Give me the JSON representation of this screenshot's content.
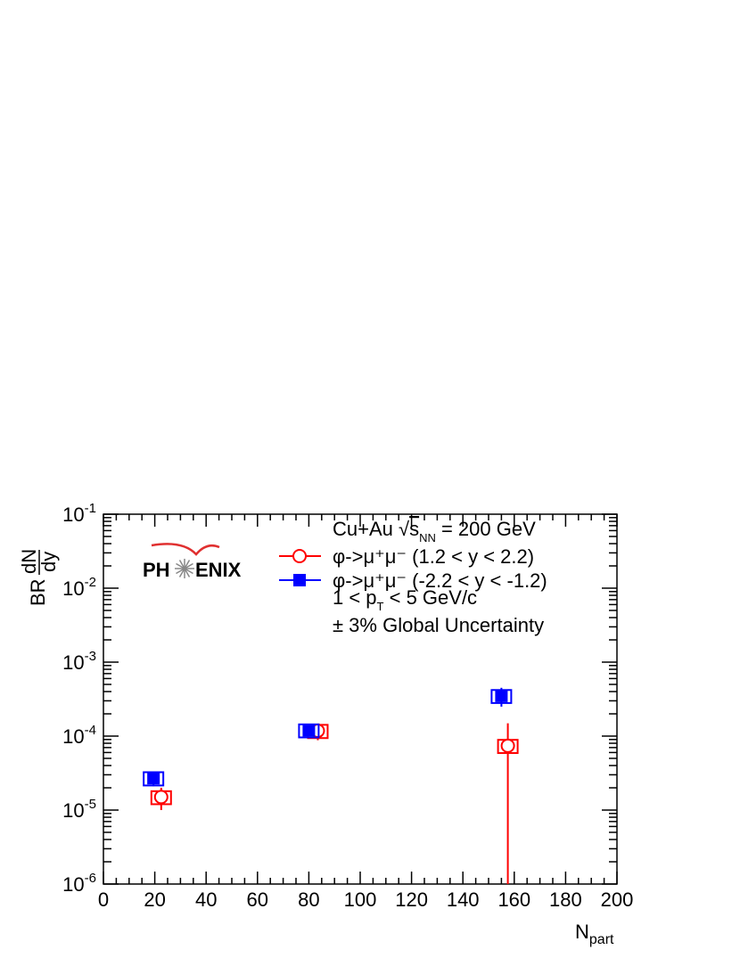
{
  "chart_data": {
    "type": "scatter",
    "log_y": true,
    "x_label": {
      "main": "N",
      "sub": "part"
    },
    "y_label": {
      "prefix": "BR",
      "numerator": "dN",
      "denominator": "dy"
    },
    "logo": {
      "left": "PH",
      "right": "ENIX"
    },
    "annotations": [
      {
        "parts": [
          {
            "text": "Cu+Au √"
          },
          {
            "text": "s"
          },
          {
            "text": "NN",
            "shift": "sub"
          },
          {
            "text": " = 200 GeV"
          }
        ]
      },
      {
        "parts": [
          {
            "text": "1 < p"
          },
          {
            "text": "T",
            "shift": "sub"
          },
          {
            "text": " < 5 GeV/c"
          }
        ]
      },
      {
        "parts": [
          {
            "text": "± 3% Global Uncertainty"
          }
        ]
      }
    ],
    "series": [
      {
        "name": "φ->μ⁺μ⁻ (1.2 < y < 2.2)",
        "color": "#ff0000",
        "marker": "open-circle",
        "x": [
          22.5,
          83.5,
          157.5
        ],
        "values": [
          1.5e-05,
          0.000118,
          7.4e-05
        ],
        "errors": [
          5e-06,
          3e-05,
          7.5e-05
        ],
        "sys_errors": [
          3e-06,
          2.4e-05,
          1.5e-05
        ]
      },
      {
        "name": "φ->μ⁺μ⁻ (-2.2 < y < -1.2)",
        "color": "#0000ff",
        "marker": "filled-square",
        "x": [
          19.5,
          80,
          155
        ],
        "values": [
          2.7e-05,
          0.00012,
          0.00035
        ],
        "errors": [
          6e-06,
          2e-05,
          0.0001
        ],
        "sys_errors": [
          5.5e-06,
          2.4e-05,
          7e-05
        ]
      }
    ],
    "xlim": [
      0,
      200
    ],
    "xticks": [
      0,
      20,
      40,
      60,
      80,
      100,
      120,
      140,
      160,
      180,
      200
    ],
    "ylim": [
      1e-06,
      0.1
    ],
    "yticks": [
      {
        "value": 1e-06,
        "label": "10",
        "superscript": "-6"
      },
      {
        "value": 1e-05,
        "label": "10",
        "superscript": "-5"
      },
      {
        "value": 0.0001,
        "label": "10",
        "superscript": "-4"
      },
      {
        "value": 0.001,
        "label": "10",
        "superscript": "-3"
      },
      {
        "value": 0.01,
        "label": "10",
        "superscript": "-2"
      },
      {
        "value": 0.1,
        "label": "10",
        "superscript": "-1"
      }
    ]
  }
}
